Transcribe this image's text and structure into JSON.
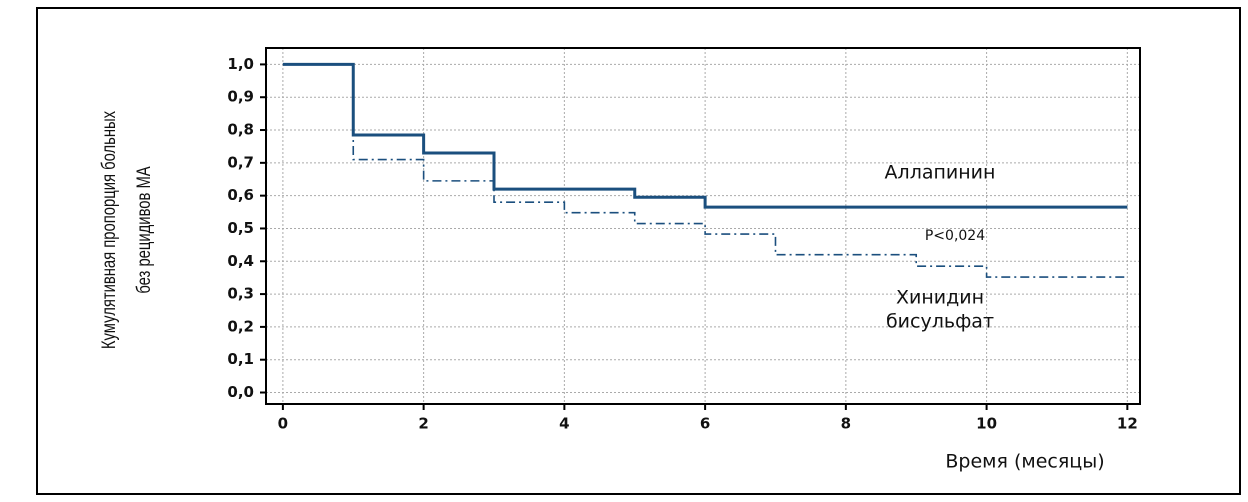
{
  "chart_data": {
    "type": "step",
    "xlabel": "Время (месяцы)",
    "ylabel": [
      "Кумулятивная пропорция больных",
      "без рецидивов МА"
    ],
    "series": [
      {
        "name": "Аллапинин",
        "color": "#1b4f7e",
        "dash": "solid",
        "x": [
          0,
          1,
          2,
          3,
          5,
          6,
          12
        ],
        "values": [
          1.0,
          0.785,
          0.73,
          0.62,
          0.595,
          0.565,
          0.565
        ]
      },
      {
        "name": "Хинидин бисульфат",
        "color": "#1b4f7e",
        "dash": "dashdot",
        "x": [
          0,
          1,
          2,
          3,
          4,
          5,
          6,
          7,
          9,
          10,
          12
        ],
        "values": [
          1.0,
          0.71,
          0.645,
          0.58,
          0.548,
          0.515,
          0.483,
          0.42,
          0.385,
          0.352,
          0.352
        ]
      }
    ],
    "annotations": [
      "Аллапинин",
      "P<0,024",
      "Хинидин",
      "бисульфат"
    ],
    "xlim": [
      -0.24,
      12.18
    ],
    "ylim": [
      -0.035,
      1.05
    ],
    "xticks": [
      0,
      2,
      4,
      6,
      8,
      10,
      12
    ],
    "yticks": [
      {
        "value": 0,
        "label": "0,0"
      },
      {
        "value": 0.1,
        "label": "0,1"
      },
      {
        "value": 0.2,
        "label": "0,2"
      },
      {
        "value": 0.3,
        "label": "0,3"
      },
      {
        "value": 0.4,
        "label": "0,4"
      },
      {
        "value": 0.5,
        "label": "0,5"
      },
      {
        "value": 0.6,
        "label": "0,6"
      },
      {
        "value": 0.7,
        "label": "0,7"
      },
      {
        "value": 0.8,
        "label": "0,8"
      },
      {
        "value": 0.9,
        "label": "0,9"
      },
      {
        "value": 1.0,
        "label": "1,0"
      }
    ],
    "grid": true
  }
}
